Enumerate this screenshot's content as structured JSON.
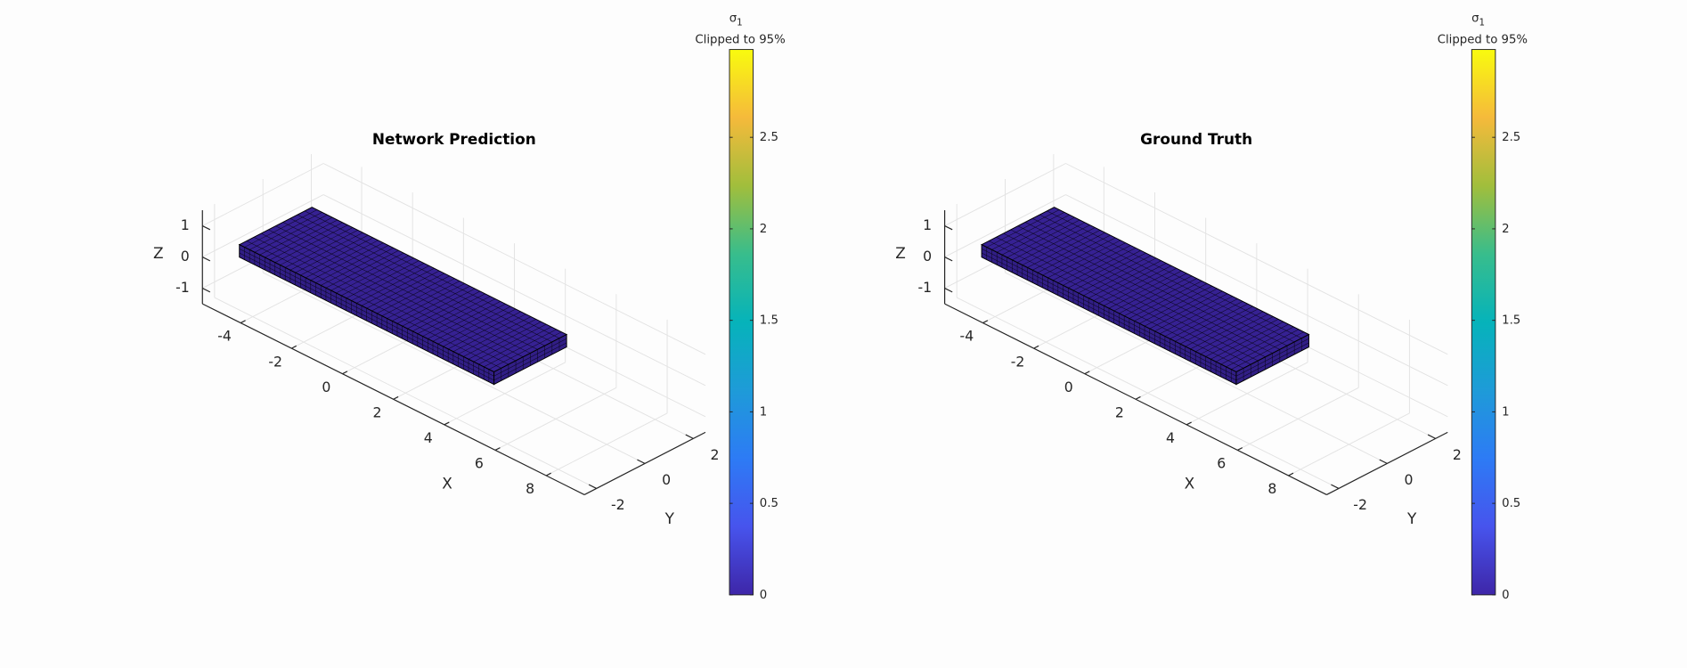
{
  "chart_data": [
    {
      "type": "mesh3d",
      "title": "Network Prediction",
      "xlabel": "X",
      "ylabel": "Y",
      "zlabel": "Z",
      "xlim": [
        -5.5,
        9.5
      ],
      "xticks": [
        -4,
        -2,
        0,
        2,
        4,
        6,
        8
      ],
      "ylim": [
        -2.5,
        2.5
      ],
      "yticks": [
        -2,
        0,
        2
      ],
      "zlim": [
        -1.5,
        1.5
      ],
      "zticks": [
        -1,
        0,
        1
      ],
      "grid": true,
      "block": {
        "x": [
          -5,
          5
        ],
        "y": [
          -1.5,
          1.5
        ],
        "z": [
          -0.2,
          0.2
        ]
      },
      "value": 0,
      "colorbar": {
        "title_symbol": "σ",
        "title_subscript": "1",
        "subtitle": "Clipped to 95%",
        "clim": [
          0,
          2.98
        ],
        "ticks": [
          0,
          0.5,
          1,
          1.5,
          2,
          2.5
        ]
      }
    },
    {
      "type": "mesh3d",
      "title": "Ground Truth",
      "xlabel": "X",
      "ylabel": "Y",
      "zlabel": "Z",
      "xlim": [
        -5.5,
        9.5
      ],
      "xticks": [
        -4,
        -2,
        0,
        2,
        4,
        6,
        8
      ],
      "ylim": [
        -2.5,
        2.5
      ],
      "yticks": [
        -2,
        0,
        2
      ],
      "zlim": [
        -1.5,
        1.5
      ],
      "zticks": [
        -1,
        0,
        1
      ],
      "grid": true,
      "block": {
        "x": [
          -5,
          5
        ],
        "y": [
          -1.5,
          1.5
        ],
        "z": [
          -0.2,
          0.2
        ]
      },
      "value": 0,
      "colorbar": {
        "title_symbol": "σ",
        "title_subscript": "1",
        "subtitle": "Clipped to 95%",
        "clim": [
          0,
          2.98
        ],
        "ticks": [
          0,
          0.5,
          1,
          1.5,
          2,
          2.5
        ]
      }
    }
  ]
}
